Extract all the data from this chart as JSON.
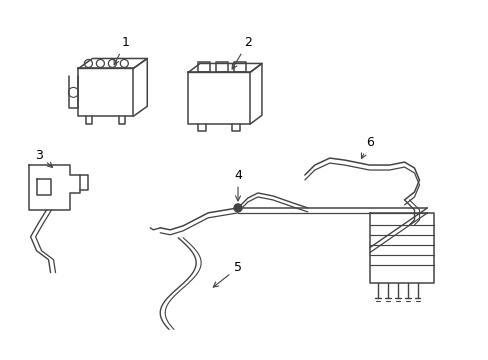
{
  "bg_color": "#ffffff",
  "line_color": "#444444",
  "label_color": "#000000",
  "figsize": [
    4.89,
    3.6
  ],
  "dpi": 100
}
